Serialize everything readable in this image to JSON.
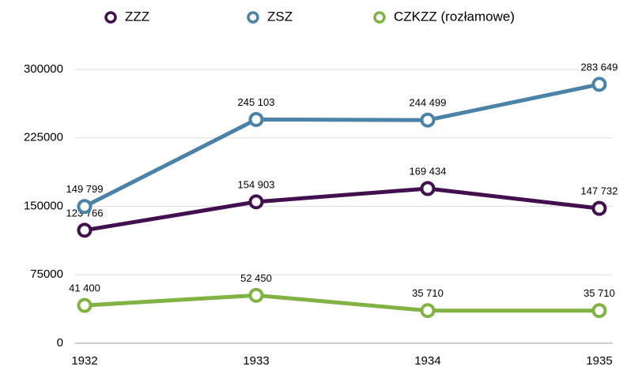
{
  "chart_data": {
    "type": "line",
    "categories": [
      "1932",
      "1933",
      "1934",
      "1935"
    ],
    "series": [
      {
        "name": "ZZZ",
        "color": "#42104f",
        "values": [
          123766,
          154903,
          169434,
          147732
        ],
        "value_labels": [
          "123 766",
          "154 903",
          "169 434",
          "147 732"
        ]
      },
      {
        "name": "ZSZ",
        "color": "#4a82a8",
        "values": [
          149799,
          245103,
          244499,
          283649
        ],
        "value_labels": [
          "149 799",
          "245 103",
          "244 499",
          "283 649"
        ]
      },
      {
        "name": "CZKZZ (rozłamowe)",
        "color": "#80b341",
        "values": [
          41400,
          52450,
          35710,
          35710
        ],
        "value_labels": [
          "41 400",
          "52 450",
          "35 710",
          "35 710"
        ]
      }
    ],
    "ylim": [
      0,
      300000
    ],
    "yticks": [
      0,
      75000,
      150000,
      225000,
      300000
    ],
    "grid": true
  }
}
